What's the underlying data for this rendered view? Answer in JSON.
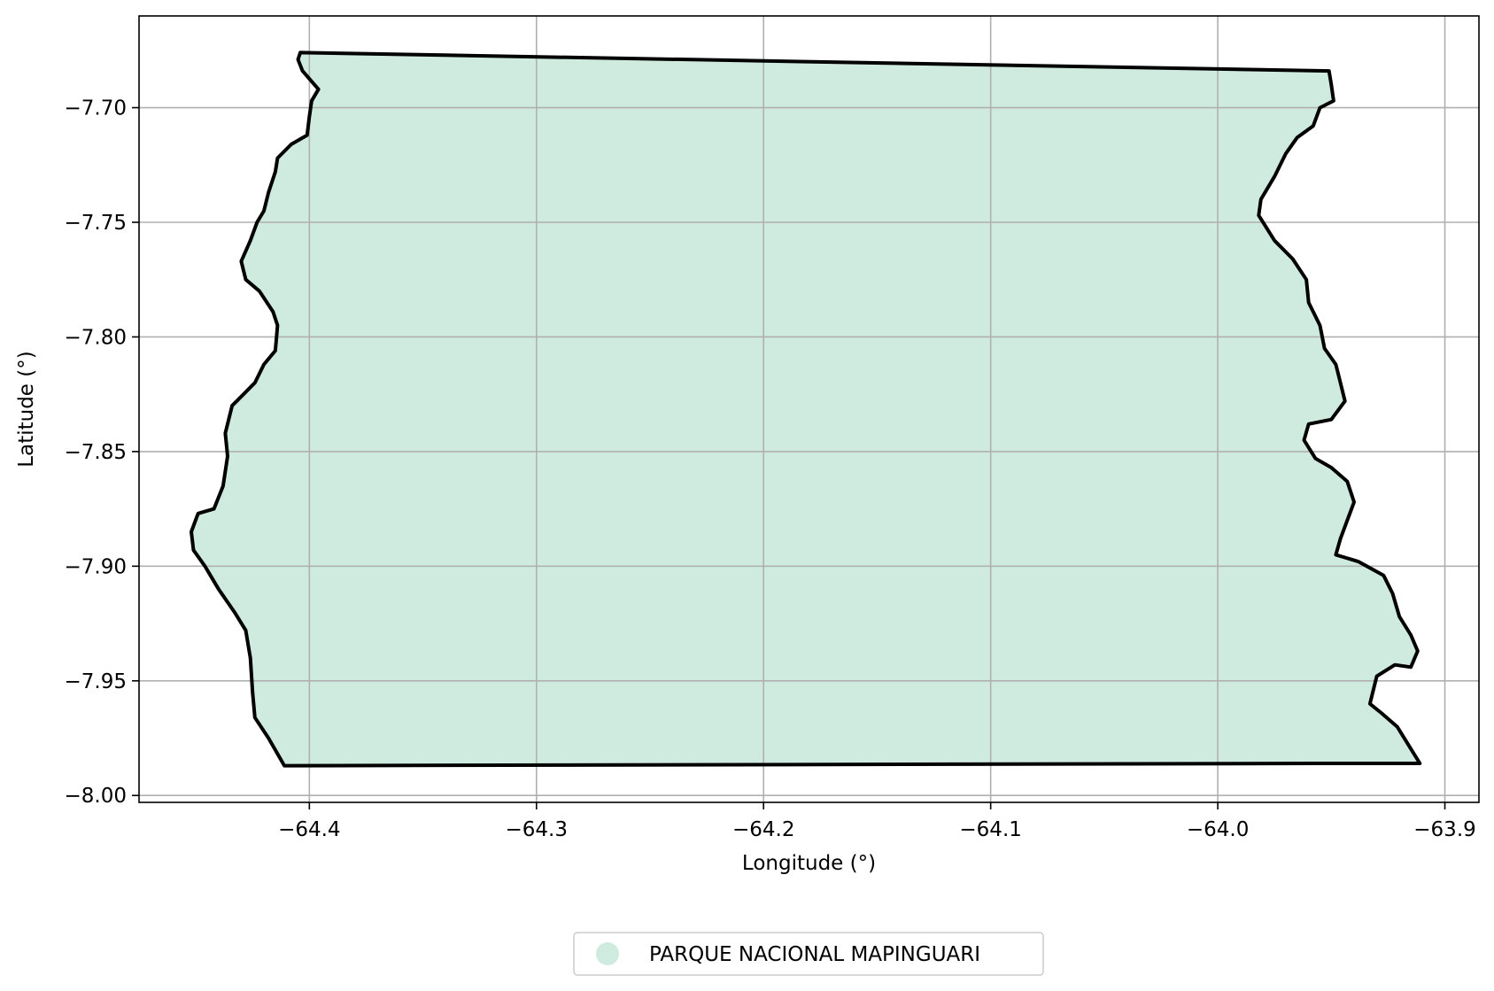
{
  "chart_data": {
    "type": "map",
    "xlabel": "Longitude (°)",
    "ylabel": "Latitude (°)",
    "xlim": [
      -64.475,
      -63.885
    ],
    "ylim": [
      -8.003,
      -7.66
    ],
    "xticks": [
      {
        "value": -64.4,
        "label": "−64.4"
      },
      {
        "value": -64.3,
        "label": "−64.3"
      },
      {
        "value": -64.2,
        "label": "−64.2"
      },
      {
        "value": -64.1,
        "label": "−64.1"
      },
      {
        "value": -64.0,
        "label": "−64.0"
      },
      {
        "value": -63.9,
        "label": "−63.9"
      }
    ],
    "yticks": [
      {
        "value": -7.7,
        "label": "−7.70"
      },
      {
        "value": -7.75,
        "label": "−7.75"
      },
      {
        "value": -7.8,
        "label": "−7.80"
      },
      {
        "value": -7.85,
        "label": "−7.85"
      },
      {
        "value": -7.9,
        "label": "−7.90"
      },
      {
        "value": -7.95,
        "label": "−7.95"
      },
      {
        "value": -8.0,
        "label": "−8.00"
      }
    ],
    "grid": true,
    "legend_position": "bottom-center",
    "features": [
      {
        "name": "PARQUE NACIONAL MAPINGUARI",
        "fill": "#cfebdf",
        "stroke": "#000000",
        "boundary": [
          [
            -64.404,
            -7.676
          ],
          [
            -63.951,
            -7.684
          ],
          [
            -63.95,
            -7.69
          ],
          [
            -63.949,
            -7.697
          ],
          [
            -63.955,
            -7.7
          ],
          [
            -63.958,
            -7.708
          ],
          [
            -63.965,
            -7.713
          ],
          [
            -63.97,
            -7.72
          ],
          [
            -63.975,
            -7.73
          ],
          [
            -63.981,
            -7.74
          ],
          [
            -63.982,
            -7.747
          ],
          [
            -63.975,
            -7.758
          ],
          [
            -63.967,
            -7.766
          ],
          [
            -63.961,
            -7.775
          ],
          [
            -63.96,
            -7.785
          ],
          [
            -63.955,
            -7.795
          ],
          [
            -63.953,
            -7.805
          ],
          [
            -63.948,
            -7.812
          ],
          [
            -63.946,
            -7.82
          ],
          [
            -63.944,
            -7.828
          ],
          [
            -63.95,
            -7.836
          ],
          [
            -63.96,
            -7.838
          ],
          [
            -63.962,
            -7.845
          ],
          [
            -63.957,
            -7.853
          ],
          [
            -63.95,
            -7.857
          ],
          [
            -63.943,
            -7.863
          ],
          [
            -63.94,
            -7.872
          ],
          [
            -63.943,
            -7.88
          ],
          [
            -63.946,
            -7.888
          ],
          [
            -63.948,
            -7.895
          ],
          [
            -63.938,
            -7.898
          ],
          [
            -63.927,
            -7.904
          ],
          [
            -63.923,
            -7.912
          ],
          [
            -63.92,
            -7.922
          ],
          [
            -63.915,
            -7.93
          ],
          [
            -63.912,
            -7.937
          ],
          [
            -63.915,
            -7.944
          ],
          [
            -63.922,
            -7.943
          ],
          [
            -63.93,
            -7.948
          ],
          [
            -63.933,
            -7.96
          ],
          [
            -63.928,
            -7.964
          ],
          [
            -63.921,
            -7.97
          ],
          [
            -63.916,
            -7.978
          ],
          [
            -63.911,
            -7.986
          ],
          [
            -63.956,
            -7.986
          ],
          [
            -64.411,
            -7.987
          ],
          [
            -64.418,
            -7.975
          ],
          [
            -64.424,
            -7.966
          ],
          [
            -64.425,
            -7.955
          ],
          [
            -64.426,
            -7.94
          ],
          [
            -64.428,
            -7.928
          ],
          [
            -64.433,
            -7.92
          ],
          [
            -64.44,
            -7.91
          ],
          [
            -64.446,
            -7.9
          ],
          [
            -64.451,
            -7.893
          ],
          [
            -64.452,
            -7.885
          ],
          [
            -64.449,
            -7.877
          ],
          [
            -64.442,
            -7.875
          ],
          [
            -64.438,
            -7.865
          ],
          [
            -64.436,
            -7.852
          ],
          [
            -64.437,
            -7.842
          ],
          [
            -64.434,
            -7.83
          ],
          [
            -64.429,
            -7.825
          ],
          [
            -64.424,
            -7.82
          ],
          [
            -64.42,
            -7.812
          ],
          [
            -64.415,
            -7.806
          ],
          [
            -64.414,
            -7.795
          ],
          [
            -64.416,
            -7.789
          ],
          [
            -64.422,
            -7.78
          ],
          [
            -64.428,
            -7.775
          ],
          [
            -64.43,
            -7.767
          ],
          [
            -64.426,
            -7.758
          ],
          [
            -64.423,
            -7.75
          ],
          [
            -64.42,
            -7.745
          ],
          [
            -64.418,
            -7.737
          ],
          [
            -64.415,
            -7.728
          ],
          [
            -64.414,
            -7.722
          ],
          [
            -64.408,
            -7.716
          ],
          [
            -64.401,
            -7.712
          ],
          [
            -64.4,
            -7.704
          ],
          [
            -64.399,
            -7.697
          ],
          [
            -64.396,
            -7.692
          ],
          [
            -64.403,
            -7.684
          ],
          [
            -64.405,
            -7.679
          ],
          [
            -64.404,
            -7.676
          ]
        ]
      }
    ]
  },
  "legend": {
    "label": "PARQUE NACIONAL MAPINGUARI",
    "marker_color": "#cfebdf"
  }
}
